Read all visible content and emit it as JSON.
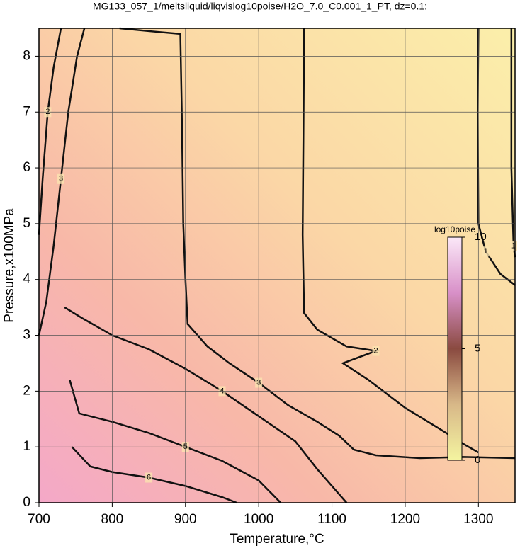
{
  "chart_data": {
    "type": "contour",
    "title": "MG133_057_1/meltsliquid/liqvislog10poise/H2O_7.0_C0.001_1_PT, dz=0.1:",
    "x_label": "Temperature,°C",
    "y_label": "Pressure,x100MPa",
    "xlim": [
      700,
      1350
    ],
    "ylim": [
      0,
      8.5
    ],
    "xticks": [
      700,
      800,
      900,
      1000,
      1100,
      1200,
      1300
    ],
    "yticks": [
      0,
      1,
      2,
      3,
      4,
      5,
      6,
      7,
      8
    ],
    "grid": true,
    "contours": [
      {
        "level": 3,
        "x": [
          810,
          850,
          893,
          895,
          897,
          900,
          903,
          930,
          960,
          1000,
          1040,
          1080,
          1110,
          1130,
          1160,
          1220,
          1280,
          1350
        ],
        "y": [
          8.5,
          8.45,
          8.4,
          7.0,
          5.0,
          4.0,
          3.2,
          2.8,
          2.5,
          2.15,
          1.75,
          1.45,
          1.2,
          0.95,
          0.85,
          0.8,
          0.82,
          0.8
        ]
      },
      {
        "level": 2,
        "x": [
          1062,
          1061,
          1060,
          1062,
          1080,
          1120,
          1160,
          1115,
          1150,
          1200,
          1250,
          1280,
          1300
        ],
        "y": [
          8.5,
          6.5,
          4.8,
          3.4,
          3.1,
          2.8,
          2.72,
          2.5,
          2.2,
          1.7,
          1.3,
          1.05,
          0.9
        ]
      },
      {
        "level": 1,
        "x": [
          1300,
          1299,
          1300,
          1310,
          1330,
          1350
        ],
        "y": [
          8.5,
          7.0,
          5.0,
          4.5,
          4.1,
          3.9
        ]
      },
      {
        "level": 1,
        "x": [
          1345,
          1345,
          1348,
          1350
        ],
        "y": [
          8.5,
          6.0,
          4.6,
          4.4
        ]
      },
      {
        "level": 4,
        "x": [
          735,
          760,
          800,
          850,
          900,
          950,
          1000,
          1050,
          1080,
          1100,
          1120
        ],
        "y": [
          3.5,
          3.3,
          3.0,
          2.75,
          2.4,
          2.0,
          1.55,
          1.1,
          0.6,
          0.3,
          0
        ]
      },
      {
        "level": 5,
        "x": [
          742,
          755,
          800,
          850,
          900,
          950,
          1000,
          1030
        ],
        "y": [
          2.2,
          1.6,
          1.45,
          1.25,
          1.0,
          0.75,
          0.4,
          0
        ]
      },
      {
        "level": 6,
        "x": [
          745,
          770,
          800,
          850,
          900,
          950,
          970
        ],
        "y": [
          1.0,
          0.65,
          0.55,
          0.45,
          0.3,
          0.1,
          0
        ]
      },
      {
        "level": 3,
        "x": [
          700,
          710,
          720,
          730,
          740,
          752,
          762
        ],
        "y": [
          3.0,
          3.6,
          4.6,
          5.8,
          7.0,
          8.0,
          8.5
        ]
      },
      {
        "level": 2,
        "x": [
          700,
          705,
          712,
          720,
          730
        ],
        "y": [
          4.8,
          5.8,
          7.0,
          7.8,
          8.5
        ]
      }
    ],
    "colorbar": {
      "label": "log10poise",
      "range": [
        0,
        10
      ],
      "ticks": [
        0,
        5,
        10
      ]
    }
  }
}
